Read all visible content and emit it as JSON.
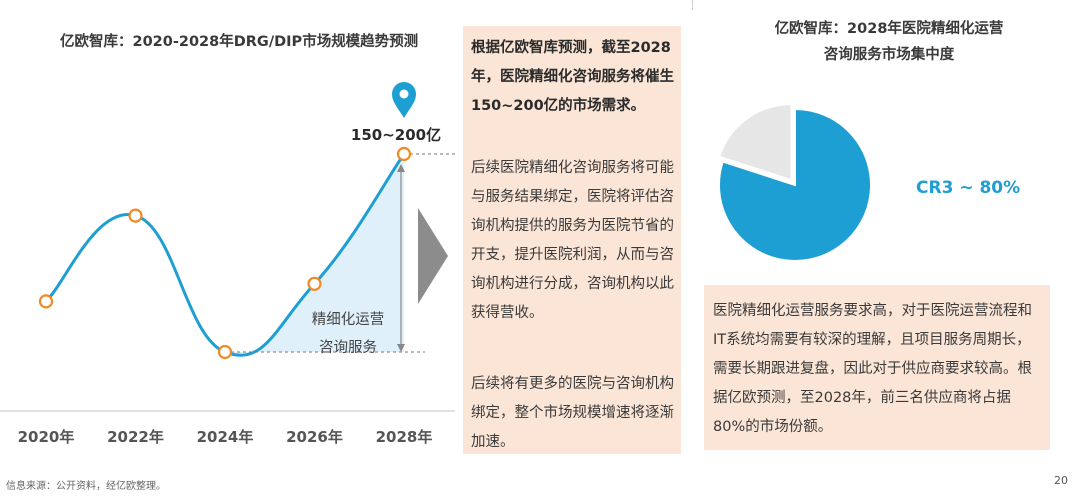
{
  "left_chart": {
    "title": "亿欧智库：2020-2028年DRG/DIP市场规模趋势预测",
    "peak_label": "150~200亿",
    "inside_label_line1": "精细化运营",
    "inside_label_line2": "咨询服务"
  },
  "middle_panel": {
    "highlight": "根据亿欧智库预测，截至2028年，医院精细化咨询服务将催生150~200亿的市场需求。",
    "para1": "后续医院精细化咨询服务将可能与服务结果绑定，医院将评估咨询机构提供的服务为医院节省的开支，提升医院利润，从而与咨询机构进行分成，咨询机构以此获得营收。",
    "para2": "后续将有更多的医院与咨询机构绑定，整个市场规模增速将逐渐加速。"
  },
  "right_chart": {
    "title_line1": "亿欧智库：2028年医院精细化运营",
    "title_line2": "咨询服务市场集中度",
    "label": "CR3 ~ 80%"
  },
  "right_panel": {
    "text": "医院精细化运营服务要求高，对于医院运营流程和IT系统均需要有较深的理解，且项目服务周期长，需要长期跟进复盘，因此对于供应商要求较高。根据亿欧预测，至2028年，前三名供应商将占据80%的市场份额。"
  },
  "footer": {
    "source": "信息来源：公开资料，经亿欧整理。",
    "page": "20"
  },
  "colors": {
    "line": "#1e9fd3",
    "marker": "#f08a24",
    "area": "#dff0fa",
    "pie_major": "#1e9fd3",
    "pie_minor": "#e6e6e6",
    "panel": "#fbe5d6",
    "arrow": "#8c8c8c"
  },
  "chart_data": [
    {
      "type": "line",
      "title": "亿欧智库：2020-2028年DRG/DIP市场规模趋势预测",
      "categories": [
        "2020年",
        "2022年",
        "2024年",
        "2026年",
        "2028年"
      ],
      "series": [
        {
          "values": [
            0.33,
            0.72,
            0.1,
            0.41,
            1.0
          ]
        }
      ],
      "peak_annotation": "150~200亿",
      "note": "",
      "grid": false,
      "ylim": [
        0,
        1.1
      ]
    },
    {
      "type": "pie",
      "title": "亿欧智库：2028年医院精细化运营咨询服务市场集中度",
      "slices": [
        {
          "label": "CR3 ~ 80%",
          "value": 80
        },
        {
          "value": 20
        }
      ]
    }
  ]
}
